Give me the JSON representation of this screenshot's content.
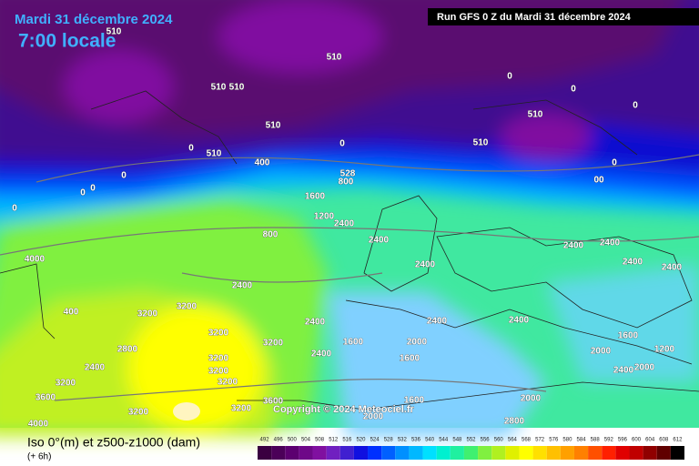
{
  "header": {
    "date": "Mardi 31 décembre 2024",
    "time": "7:00 locale",
    "run": "Run GFS 0 Z du Mardi 31 décembre 2024"
  },
  "footer": {
    "title": "Iso 0°(m) et z500-z1000 (dam)",
    "step": "(+ 6h)",
    "copyright": "Copyright © 2024 Meteociel.fr"
  },
  "legend": {
    "levels": [
      492,
      496,
      500,
      504,
      508,
      512,
      516,
      520,
      524,
      528,
      532,
      536,
      540,
      544,
      548,
      552,
      556,
      560,
      564,
      568,
      572,
      576,
      580,
      584,
      588,
      592,
      596,
      600,
      604,
      608,
      612
    ],
    "colors": [
      "#3a0040",
      "#4b0058",
      "#5c0070",
      "#6e0888",
      "#8010a0",
      "#7020c0",
      "#4020d0",
      "#1010e0",
      "#0030ff",
      "#0060ff",
      "#0090ff",
      "#00b8ff",
      "#00e0ff",
      "#00f0d0",
      "#20f0a0",
      "#40f070",
      "#80f040",
      "#b0f020",
      "#e0f000",
      "#ffff00",
      "#ffe000",
      "#ffc000",
      "#ffa000",
      "#ff8000",
      "#ff5000",
      "#ff2000",
      "#e00000",
      "#c00000",
      "#900000",
      "#600000",
      "#000000"
    ]
  },
  "contour_labels": [
    "510",
    "510",
    "510",
    "510",
    "510",
    "510",
    "510",
    "510",
    "0",
    "0",
    "0",
    "0",
    "0",
    "0",
    "0",
    "0",
    "0",
    "0",
    "00",
    "400",
    "800",
    "528",
    "1600",
    "1200",
    "2400",
    "800",
    "2400",
    "2400",
    "2400",
    "2400",
    "3200",
    "3200",
    "2800",
    "2400",
    "3200",
    "3200",
    "3200",
    "3200",
    "3200",
    "2400",
    "3200",
    "3600",
    "3200",
    "3200",
    "3600",
    "2000",
    "1600",
    "1600",
    "2400",
    "1600",
    "2000",
    "2400",
    "2000",
    "2400",
    "2000",
    "1200",
    "1600",
    "2400",
    "2400",
    "2400",
    "2400",
    "2000",
    "2800",
    "4000",
    "4000",
    "400"
  ]
}
